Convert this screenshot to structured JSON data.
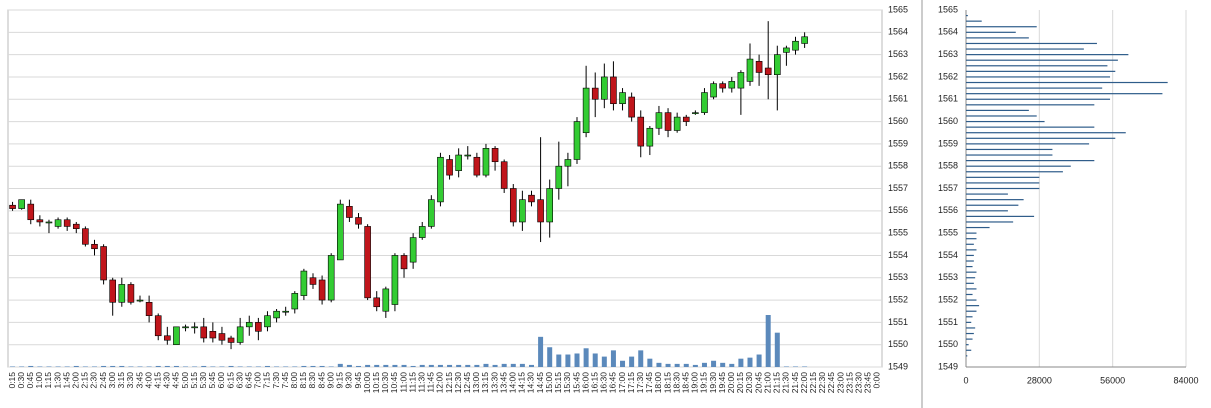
{
  "chart_data": [
    {
      "type": "candlestick",
      "categories": [
        "0:15",
        "0:30",
        "0:45",
        "1:00",
        "1:15",
        "1:30",
        "1:45",
        "2:00",
        "2:15",
        "2:30",
        "2:45",
        "3:00",
        "3:15",
        "3:30",
        "3:45",
        "4:00",
        "4:15",
        "4:30",
        "4:45",
        "5:00",
        "5:15",
        "5:30",
        "5:45",
        "6:00",
        "6:15",
        "6:30",
        "6:45",
        "7:00",
        "7:15",
        "7:30",
        "7:45",
        "8:00",
        "8:15",
        "8:30",
        "8:45",
        "9:00",
        "9:15",
        "9:30",
        "9:45",
        "10:00",
        "10:15",
        "10:30",
        "10:45",
        "11:00",
        "11:15",
        "11:30",
        "11:45",
        "12:00",
        "12:15",
        "12:30",
        "12:45",
        "13:00",
        "13:15",
        "13:30",
        "13:45",
        "14:00",
        "14:15",
        "14:30",
        "14:45",
        "15:00",
        "15:15",
        "15:30",
        "15:45",
        "16:00",
        "16:15",
        "16:30",
        "16:45",
        "17:00",
        "17:15",
        "17:30",
        "17:45",
        "18:00",
        "18:15",
        "18:30",
        "18:45",
        "19:00",
        "19:15",
        "19:30",
        "19:45",
        "20:00",
        "20:15",
        "20:30",
        "20:45",
        "21:00",
        "21:15",
        "21:30",
        "21:45",
        "22:00",
        "22:15",
        "22:30",
        "22:45",
        "23:00",
        "23:15",
        "23:30",
        "23:45",
        "0:00"
      ],
      "open": [
        1556.25,
        1556.1,
        1556.3,
        1555.6,
        1555.5,
        1555.3,
        1555.6,
        1555.4,
        1555.2,
        1554.5,
        1554.4,
        1552.9,
        1551.9,
        1552.7,
        1552.0,
        1551.9,
        1551.3,
        1550.4,
        1550.0,
        1550.8,
        1550.8,
        1550.8,
        1550.6,
        1550.5,
        1550.3,
        1550.1,
        1550.8,
        1551.0,
        1550.8,
        1551.2,
        1551.5,
        1551.6,
        1552.2,
        1553.0,
        1552.9,
        1552.0,
        1553.8,
        1556.2,
        1555.7,
        1555.3,
        1552.1,
        1551.5,
        1551.8,
        1554.0,
        1553.7,
        1554.8,
        1555.3,
        1556.4,
        1558.3,
        1557.8,
        1558.5,
        1558.4,
        1557.6,
        1558.8,
        1558.2,
        1557.0,
        1555.5,
        1556.7,
        1556.5,
        1555.5,
        1557.0,
        1558.0,
        1558.3,
        1559.5,
        1561.5,
        1561.0,
        1562.0,
        1560.8,
        1561.1,
        1560.2,
        1558.9,
        1559.7,
        1560.4,
        1559.6,
        1560.2,
        1560.4,
        1560.4,
        1561.1,
        1561.7,
        1561.5,
        1561.5,
        1561.8,
        1562.7,
        1562.4,
        1562.1,
        1563.1,
        1563.2,
        1563.5,
        null,
        null,
        null,
        null,
        null,
        null,
        null,
        null
      ],
      "high": [
        1556.4,
        1556.5,
        1556.5,
        1555.8,
        1555.6,
        1555.7,
        1555.7,
        1555.5,
        1555.3,
        1554.7,
        1554.5,
        1553.0,
        1553.0,
        1552.8,
        1552.2,
        1552.2,
        1551.4,
        1550.8,
        1550.8,
        1550.9,
        1551.0,
        1551.2,
        1551.0,
        1550.8,
        1550.4,
        1551.2,
        1551.3,
        1551.2,
        1551.5,
        1551.6,
        1551.7,
        1552.4,
        1553.4,
        1553.2,
        1553.1,
        1554.1,
        1556.5,
        1556.5,
        1555.9,
        1555.4,
        1552.4,
        1552.6,
        1554.1,
        1554.1,
        1555.0,
        1555.5,
        1556.7,
        1558.6,
        1558.5,
        1558.8,
        1558.9,
        1558.6,
        1559.0,
        1558.9,
        1558.3,
        1557.2,
        1556.9,
        1556.9,
        1559.3,
        1557.4,
        1559.1,
        1558.6,
        1560.2,
        1562.5,
        1562.2,
        1562.6,
        1562.7,
        1561.5,
        1561.3,
        1560.5,
        1559.8,
        1560.7,
        1560.6,
        1560.4,
        1560.3,
        1560.5,
        1561.5,
        1561.8,
        1561.8,
        1562.0,
        1562.3,
        1563.5,
        1563.0,
        1564.5,
        1563.4,
        1563.4,
        1563.8,
        1564.0,
        null,
        null,
        null,
        null,
        null,
        null,
        null,
        null
      ],
      "low": [
        1556.0,
        1556.05,
        1555.4,
        1555.3,
        1555.0,
        1555.2,
        1555.1,
        1555.0,
        1554.4,
        1554.0,
        1552.7,
        1551.3,
        1551.7,
        1551.8,
        1551.9,
        1551.0,
        1550.2,
        1550.0,
        1550.0,
        1550.6,
        1550.5,
        1550.1,
        1550.1,
        1550.0,
        1549.8,
        1550.0,
        1550.4,
        1550.2,
        1550.6,
        1551.0,
        1551.3,
        1551.4,
        1552.0,
        1552.5,
        1551.8,
        1551.9,
        1553.8,
        1555.5,
        1555.2,
        1552.0,
        1551.5,
        1551.2,
        1551.5,
        1553.0,
        1553.4,
        1554.7,
        1555.2,
        1556.2,
        1557.4,
        1557.5,
        1558.3,
        1557.5,
        1557.5,
        1557.8,
        1556.8,
        1555.3,
        1555.1,
        1556.2,
        1554.6,
        1554.8,
        1556.5,
        1557.1,
        1558.1,
        1559.3,
        1560.2,
        1560.6,
        1560.5,
        1560.5,
        1560.0,
        1558.4,
        1558.5,
        1559.4,
        1559.3,
        1559.5,
        1559.8,
        1560.3,
        1560.3,
        1561.0,
        1561.3,
        1561.3,
        1560.3,
        1561.6,
        1561.6,
        1561.0,
        1560.5,
        1562.5,
        1563.0,
        1563.3,
        null,
        null,
        null,
        null,
        null,
        null,
        null,
        null
      ],
      "close": [
        1556.1,
        1556.5,
        1555.6,
        1555.5,
        1555.5,
        1555.6,
        1555.3,
        1555.2,
        1554.5,
        1554.3,
        1552.9,
        1551.9,
        1552.7,
        1551.9,
        1552.0,
        1551.3,
        1550.4,
        1550.2,
        1550.8,
        1550.8,
        1550.8,
        1550.3,
        1550.3,
        1550.2,
        1550.1,
        1550.8,
        1551.0,
        1550.6,
        1551.3,
        1551.5,
        1551.5,
        1552.3,
        1553.3,
        1552.7,
        1552.0,
        1554.0,
        1556.3,
        1555.7,
        1555.4,
        1552.1,
        1551.7,
        1552.5,
        1554.0,
        1553.4,
        1554.8,
        1555.3,
        1556.5,
        1558.4,
        1557.6,
        1558.5,
        1558.5,
        1557.6,
        1558.8,
        1558.2,
        1557.0,
        1555.5,
        1556.5,
        1556.4,
        1555.5,
        1557.0,
        1558.0,
        1558.3,
        1560.0,
        1561.5,
        1561.0,
        1562.0,
        1560.8,
        1561.3,
        1560.2,
        1558.9,
        1559.7,
        1560.4,
        1559.6,
        1560.2,
        1560.0,
        1560.4,
        1561.3,
        1561.7,
        1561.5,
        1561.8,
        1562.2,
        1562.8,
        1562.2,
        1562.1,
        1563.0,
        1563.3,
        1563.6,
        1563.8,
        null,
        null,
        null,
        null,
        null,
        null,
        null,
        null
      ],
      "volume": [
        0.5,
        0.5,
        1,
        0.5,
        0.5,
        0.5,
        0.5,
        1,
        0.5,
        0.5,
        1,
        1,
        1,
        0.5,
        0.5,
        0.5,
        1,
        1,
        1,
        0.5,
        0.5,
        1,
        0.5,
        0.5,
        1,
        0.5,
        0.5,
        0.5,
        1,
        0.5,
        0.5,
        0.5,
        1,
        1,
        1,
        0.5,
        3,
        2,
        1,
        2,
        2,
        2,
        2,
        2,
        1,
        2,
        2,
        2,
        2,
        2,
        2,
        2,
        3,
        2,
        3,
        3,
        3,
        2,
        29,
        19,
        12,
        12,
        13,
        18,
        13,
        10,
        16,
        6,
        10,
        16,
        8,
        4,
        3,
        3,
        3,
        2,
        4,
        6,
        4,
        3,
        8,
        9,
        12,
        50,
        33,
        0.5,
        0.5,
        0.5,
        null,
        null,
        null,
        null,
        null,
        null,
        null,
        null
      ],
      "up_color": "#33cc33",
      "down_color": "#c0151b",
      "volume_color": "#5b89bb",
      "ylim": [
        1549,
        1565
      ],
      "yticks": [
        1549,
        1550,
        1551,
        1552,
        1553,
        1554,
        1555,
        1556,
        1557,
        1558,
        1559,
        1560,
        1561,
        1562,
        1563,
        1564,
        1565
      ],
      "grid": true
    },
    {
      "type": "profile",
      "categories": [
        1549.5,
        1549.75,
        1550,
        1550.25,
        1550.5,
        1550.75,
        1551,
        1551.25,
        1551.5,
        1551.75,
        1552,
        1552.25,
        1552.5,
        1552.75,
        1553,
        1553.25,
        1553.5,
        1553.75,
        1554,
        1554.25,
        1554.5,
        1554.75,
        1555,
        1555.25,
        1555.5,
        1555.75,
        1556,
        1556.25,
        1556.5,
        1556.75,
        1557,
        1557.25,
        1557.5,
        1557.75,
        1558,
        1558.25,
        1558.5,
        1558.75,
        1559,
        1559.25,
        1559.5,
        1559.75,
        1560,
        1560.25,
        1560.5,
        1560.75,
        1561,
        1561.25,
        1561.5,
        1561.75,
        1562,
        1562.25,
        1562.5,
        1562.75,
        1563,
        1563.25,
        1563.5,
        1563.75,
        1564,
        1564.25,
        1564.5,
        1564.75
      ],
      "values": [
        500,
        2000,
        1000,
        2500,
        3000,
        3500,
        2000,
        2500,
        4000,
        5000,
        4000,
        2500,
        4000,
        3000,
        3500,
        4000,
        2500,
        3000,
        3000,
        4000,
        3000,
        4000,
        4000,
        9000,
        18000,
        26000,
        16000,
        20000,
        22000,
        16000,
        28000,
        28000,
        28000,
        37000,
        40000,
        49000,
        33000,
        33000,
        47000,
        57000,
        61000,
        49000,
        30000,
        27000,
        24000,
        49000,
        55000,
        75000,
        52000,
        77000,
        55000,
        57000,
        54000,
        58000,
        62000,
        45000,
        50000,
        24000,
        19000,
        27000,
        6000,
        700
      ],
      "color": "#2e5c8a",
      "xlim": [
        0,
        84000
      ],
      "xticks": [
        0,
        28000,
        56000,
        84000
      ],
      "ylim": [
        1549,
        1565
      ],
      "yticks": [
        1549,
        1550,
        1551,
        1552,
        1553,
        1554,
        1555,
        1556,
        1557,
        1558,
        1559,
        1560,
        1561,
        1562,
        1563,
        1564,
        1565
      ],
      "grid": true
    }
  ]
}
